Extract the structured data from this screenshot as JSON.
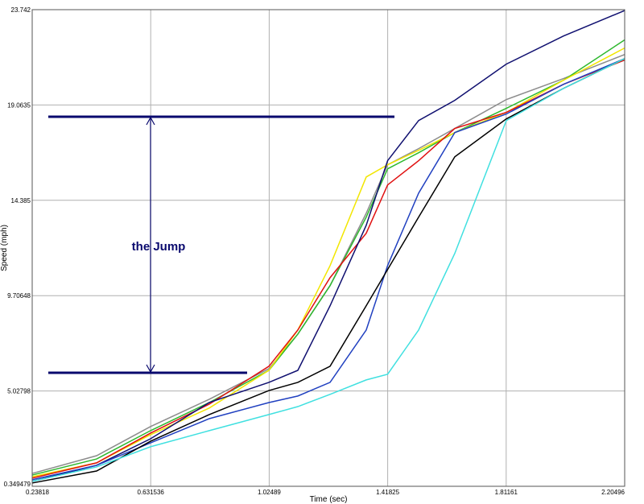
{
  "chart_data": {
    "type": "line",
    "x_label": "Time (sec)",
    "y_label": "Speed (mph)",
    "annotation": "the Jump",
    "x": [
      0.238,
      0.452,
      0.631,
      0.826,
      1.024,
      1.12,
      1.227,
      1.347,
      1.418,
      1.521,
      1.641,
      1.812,
      2.002,
      2.205
    ],
    "xlim": [
      0.23818,
      2.20496
    ],
    "xticks": [
      0.23818,
      0.631536,
      1.02489,
      1.41825,
      1.81161,
      2.20496
    ],
    "ylim": [
      0.349479,
      23.742
    ],
    "yticks": [
      0.349479,
      5.02798,
      9.70648,
      14.385,
      19.0635,
      23.742
    ],
    "grid": true,
    "series": [
      {
        "color": "#8c8c8c",
        "values": [
          0.98,
          1.85,
          3.28,
          4.62,
          6.12,
          7.82,
          10.2,
          13.75,
          16.13,
          16.92,
          17.91,
          19.33,
          20.36,
          21.54
        ]
      },
      {
        "color": "#2db82d",
        "values": [
          0.9,
          1.69,
          3.08,
          4.46,
          6.04,
          7.82,
          10.2,
          13.56,
          15.93,
          16.72,
          17.71,
          18.9,
          20.28,
          22.26
        ]
      },
      {
        "color": "#f2e600",
        "values": [
          0.82,
          1.5,
          2.88,
          4.19,
          6.04,
          8.02,
          11.18,
          15.53,
          16.13,
          16.84,
          17.71,
          18.7,
          20.28,
          21.86
        ]
      },
      {
        "color": "#e01010",
        "values": [
          0.75,
          1.5,
          2.96,
          4.38,
          6.24,
          8.02,
          10.59,
          12.77,
          15.14,
          16.33,
          17.91,
          18.7,
          20.08,
          21.27
        ]
      },
      {
        "color": "#101070",
        "values": [
          0.59,
          1.38,
          2.68,
          4.46,
          5.45,
          6.04,
          9.21,
          13.16,
          16.33,
          18.3,
          19.29,
          21.07,
          22.45,
          23.7
        ]
      },
      {
        "color": "#2040c0",
        "values": [
          0.67,
          1.38,
          2.48,
          3.67,
          4.46,
          4.78,
          5.45,
          8.02,
          11.18,
          14.74,
          17.71,
          18.62,
          20.08,
          21.34
        ]
      },
      {
        "color": "#000000",
        "values": [
          0.51,
          1.1,
          2.56,
          3.87,
          5.05,
          5.45,
          6.24,
          9.21,
          10.99,
          13.56,
          16.52,
          18.38,
          19.88,
          21.34
        ]
      },
      {
        "color": "#40e0e0",
        "values": [
          0.59,
          1.3,
          2.29,
          3.08,
          3.87,
          4.26,
          4.86,
          5.57,
          5.85,
          8.02,
          11.78,
          18.3,
          19.88,
          21.34
        ]
      }
    ]
  }
}
